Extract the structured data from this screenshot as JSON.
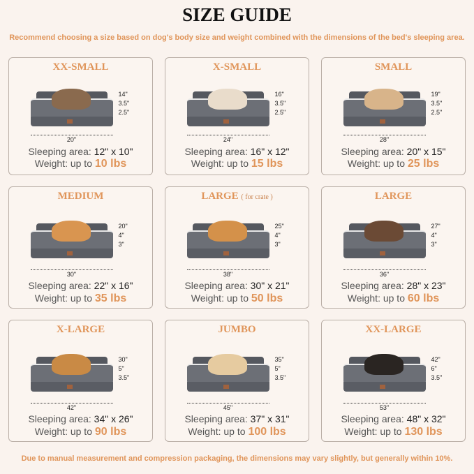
{
  "title": "SIZE GUIDE",
  "subtitle": "Recommend choosing a size based on dog's body size and weight combined with the dimensions of the bed's sleeping area.",
  "footer": "Due to manual measurement and compression packaging, the dimensions may vary slightly, but generally within 10%.",
  "sleeping_label": "Sleeping area:",
  "weight_label": "Weight:  up to",
  "sizes": [
    {
      "name": "XX-SMALL",
      "note": "",
      "length": "20\"",
      "height": "14\"",
      "h1": "3.5\"",
      "h2": "2.5\"",
      "sleeping": "12\" x 10\"",
      "weight": "10 lbs",
      "pet": "cat",
      "pet_color": "#8a6a4e"
    },
    {
      "name": "X-SMALL",
      "note": "",
      "length": "24\"",
      "height": "16\"",
      "h1": "3.5\"",
      "h2": "2.5\"",
      "sleeping": "16\" x 12\"",
      "weight": "15 lbs",
      "pet": "dog",
      "pet_color": "#e9dccb"
    },
    {
      "name": "SMALL",
      "note": "",
      "length": "28\"",
      "height": "19\"",
      "h1": "3.5\"",
      "h2": "2.5\"",
      "sleeping": "20\" x 15\"",
      "weight": "25 lbs",
      "pet": "dog",
      "pet_color": "#d8b48a"
    },
    {
      "name": "MEDIUM",
      "note": "",
      "length": "30\"",
      "height": "20\"",
      "h1": "4\"",
      "h2": "3\"",
      "sleeping": "22\" x 16\"",
      "weight": "35 lbs",
      "pet": "dog",
      "pet_color": "#d99550"
    },
    {
      "name": "LARGE",
      "note": "( for crate )",
      "length": "38\"",
      "height": "25\"",
      "h1": "4\"",
      "h2": "3\"",
      "sleeping": "30\" x 21\"",
      "weight": "50 lbs",
      "pet": "dog",
      "pet_color": "#d4914a"
    },
    {
      "name": "LARGE",
      "note": "",
      "length": "36\"",
      "height": "27\"",
      "h1": "4\"",
      "h2": "3\"",
      "sleeping": "28\" x 23\"",
      "weight": "60 lbs",
      "pet": "dog",
      "pet_color": "#6b4a35"
    },
    {
      "name": "X-LARGE",
      "note": "",
      "length": "42\"",
      "height": "30\"",
      "h1": "5\"",
      "h2": "3.5\"",
      "sleeping": "34\" x 26\"",
      "weight": "90 lbs",
      "pet": "dog",
      "pet_color": "#c98a45"
    },
    {
      "name": "JUMBO",
      "note": "",
      "length": "45\"",
      "height": "35\"",
      "h1": "5\"",
      "h2": "3.5\"",
      "sleeping": "37\" x 31\"",
      "weight": "100 lbs",
      "pet": "dog",
      "pet_color": "#e6cba0"
    },
    {
      "name": "XX-LARGE",
      "note": "",
      "length": "53\"",
      "height": "42\"",
      "h1": "6\"",
      "h2": "3.5\"",
      "sleeping": "48\" x 32\"",
      "weight": "130 lbs",
      "pet": "dog",
      "pet_color": "#2a2522"
    }
  ]
}
